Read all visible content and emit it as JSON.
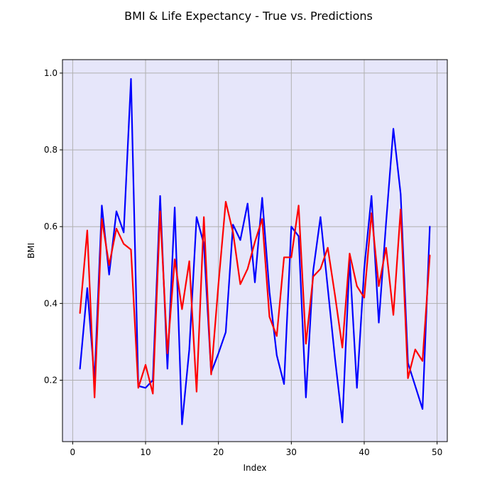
{
  "chart_data": {
    "type": "line",
    "title": "BMI & Life Expectancy - True vs. Predictions",
    "xlabel": "Index",
    "ylabel": "BMI",
    "xlim": [
      -1.4,
      51.4
    ],
    "ylim": [
      0.04,
      1.035
    ],
    "xticks": [
      0,
      10,
      20,
      30,
      40,
      50
    ],
    "yticks": [
      0.2,
      0.4,
      0.6,
      0.8,
      1.0
    ],
    "xtick_labels": [
      "0",
      "10",
      "20",
      "30",
      "40",
      "50"
    ],
    "ytick_labels": [
      "0.2",
      "0.4",
      "0.6",
      "0.8",
      "1.0"
    ],
    "grid": true,
    "background": "#e6e6fa",
    "x": [
      1,
      2,
      3,
      4,
      5,
      6,
      7,
      8,
      9,
      10,
      11,
      12,
      13,
      14,
      15,
      16,
      17,
      18,
      19,
      20,
      21,
      22,
      23,
      24,
      25,
      26,
      27,
      28,
      29,
      30,
      31,
      32,
      33,
      34,
      35,
      36,
      37,
      38,
      39,
      40,
      41,
      42,
      43,
      44,
      45,
      46,
      47,
      48,
      49
    ],
    "series": [
      {
        "color": "#0000ff",
        "values": [
          0.23,
          0.44,
          0.2,
          0.655,
          0.475,
          0.64,
          0.585,
          0.985,
          0.185,
          0.18,
          0.2,
          0.68,
          0.23,
          0.65,
          0.085,
          0.28,
          0.625,
          0.555,
          0.22,
          0.27,
          0.325,
          0.605,
          0.565,
          0.66,
          0.455,
          0.675,
          0.43,
          0.265,
          0.19,
          0.6,
          0.575,
          0.155,
          0.485,
          0.625,
          0.44,
          0.255,
          0.09,
          0.515,
          0.18,
          0.49,
          0.68,
          0.35,
          0.61,
          0.855,
          0.685,
          0.245,
          0.185,
          0.125,
          0.6
        ]
      },
      {
        "color": "#ff0000",
        "values": [
          0.375,
          0.59,
          0.155,
          0.62,
          0.5,
          0.595,
          0.555,
          0.54,
          0.18,
          0.24,
          0.165,
          0.64,
          0.27,
          0.515,
          0.385,
          0.51,
          0.17,
          0.625,
          0.215,
          0.45,
          0.665,
          0.585,
          0.45,
          0.49,
          0.56,
          0.62,
          0.365,
          0.315,
          0.52,
          0.52,
          0.655,
          0.295,
          0.47,
          0.49,
          0.545,
          0.42,
          0.285,
          0.53,
          0.445,
          0.415,
          0.635,
          0.445,
          0.545,
          0.37,
          0.645,
          0.205,
          0.28,
          0.25,
          0.525
        ]
      }
    ]
  }
}
